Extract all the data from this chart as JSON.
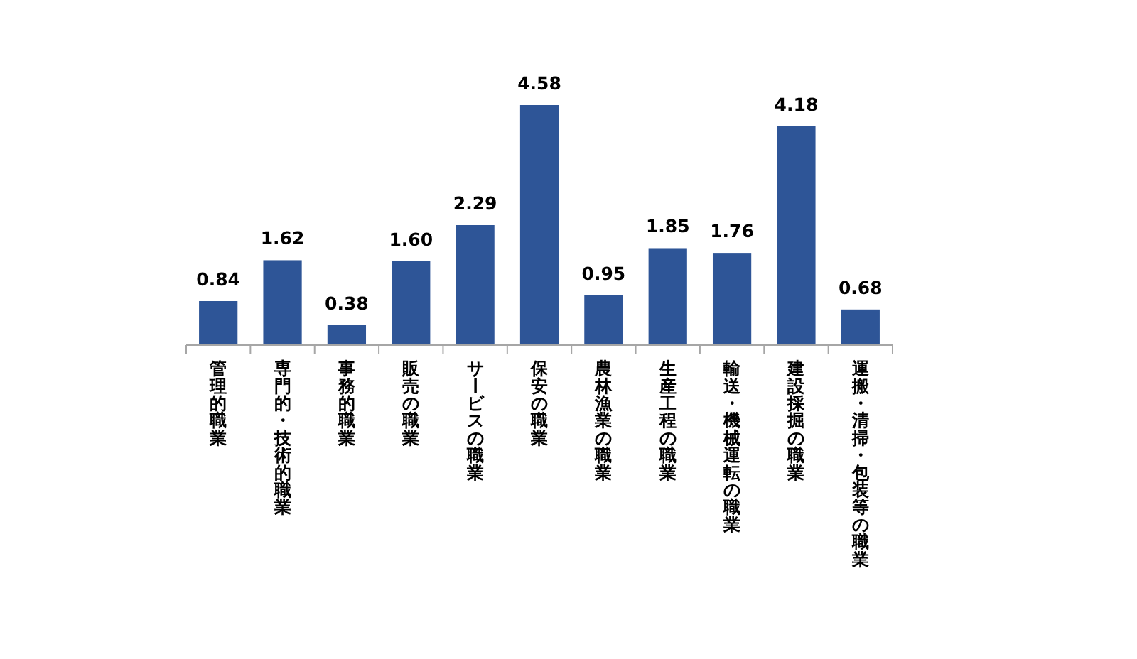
{
  "chart_data": {
    "type": "bar",
    "categories": [
      "管理的職業",
      "専門的・技術的職業",
      "事務的職業",
      "販売の職業",
      "サービスの職業",
      "保安の職業",
      "農林漁業の職業",
      "生産工程の職業",
      "輸送・機械運転の職業",
      "建設採掘の職業",
      "運搬・清掃・包装等の職業"
    ],
    "values": [
      0.84,
      1.62,
      0.38,
      1.6,
      2.29,
      4.58,
      0.95,
      1.85,
      1.76,
      4.18,
      0.68
    ],
    "value_labels": [
      "0.84",
      "1.62",
      "0.38",
      "1.60",
      "2.29",
      "4.58",
      "0.95",
      "1.85",
      "1.76",
      "4.18",
      "0.68"
    ],
    "color": "#2e5597"
  }
}
